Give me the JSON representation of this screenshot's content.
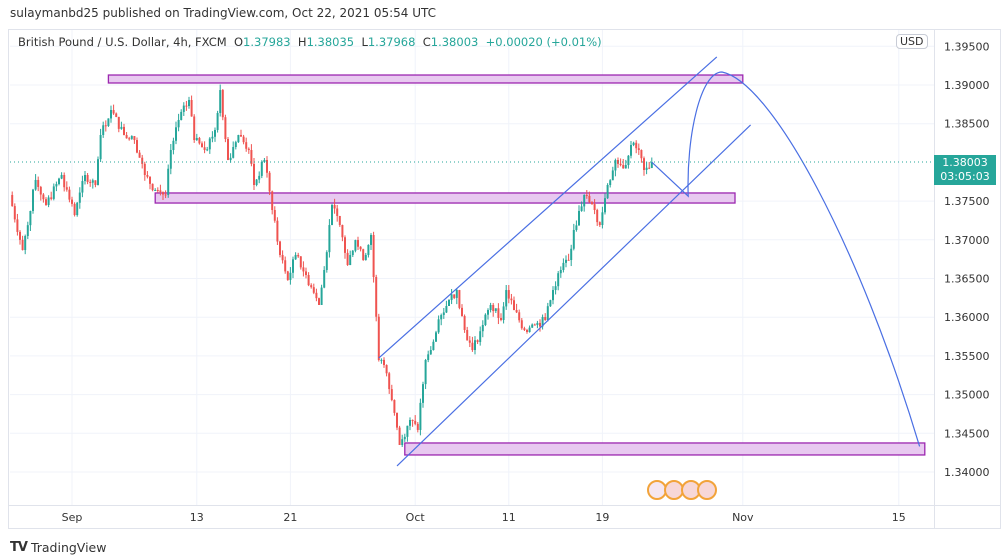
{
  "header": {
    "published": "sulaymanbd25 published on TradingView.com, Oct 22, 2021 05:54 UTC"
  },
  "legend": {
    "symbol": "British Pound / U.S. Dollar, 4h, FXCM",
    "open_label": "O",
    "open": "1.37983",
    "high_label": "H",
    "high": "1.38035",
    "low_label": "L",
    "low": "1.37968",
    "close_label": "C",
    "close": "1.38003",
    "change": "+0.00020 (+0.01%)"
  },
  "price_axis": {
    "currency_button": "USD",
    "current_price": "1.38003",
    "countdown": "03:05:03"
  },
  "footer": {
    "brand": "TradingView",
    "logo_mark": "17"
  },
  "colors": {
    "up": "#26a69a",
    "down": "#ef5350",
    "zone_fill": "#e8c9f0",
    "zone_border": "#9c27b0",
    "drawing": "#4a6fe3",
    "current_price": "#26a69a"
  },
  "chart_data": {
    "type": "candlestick",
    "title": "",
    "ylim": [
      1.3375,
      1.3955
    ],
    "grid": true,
    "y_ticks": [
      "1.39500",
      "1.39000",
      "1.38500",
      "1.37500",
      "1.37000",
      "1.36500",
      "1.36000",
      "1.35500",
      "1.35000",
      "1.34500",
      "1.34000"
    ],
    "x_ticks": [
      {
        "label": "Sep",
        "date": "2021-09-01"
      },
      {
        "label": "13",
        "date": "2021-09-13"
      },
      {
        "label": "21",
        "date": "2021-09-21"
      },
      {
        "label": "Oct",
        "date": "2021-10-01"
      },
      {
        "label": "11",
        "date": "2021-10-11"
      },
      {
        "label": "19",
        "date": "2021-10-19"
      },
      {
        "label": "Nov",
        "date": "2021-11-01"
      },
      {
        "label": "15",
        "date": "2021-11-15"
      }
    ],
    "price_path": [
      [
        "2021-08-26T00",
        1.37579
      ],
      [
        "2021-08-26T20",
        1.36868
      ],
      [
        "2021-08-27T16",
        1.37773
      ],
      [
        "2021-08-30T08",
        1.3745
      ],
      [
        "2021-08-31T08",
        1.37837
      ],
      [
        "2021-09-01T04",
        1.3732
      ],
      [
        "2021-09-01T20",
        1.37837
      ],
      [
        "2021-09-02T12",
        1.37708
      ],
      [
        "2021-09-02T20",
        1.38354
      ],
      [
        "2021-09-03T12",
        1.38677
      ],
      [
        "2021-09-06T08",
        1.38354
      ],
      [
        "2021-09-07T00",
        1.38289
      ],
      [
        "2021-09-07T16",
        1.37837
      ],
      [
        "2021-09-08T08",
        1.37643
      ],
      [
        "2021-09-09T00",
        1.37579
      ],
      [
        "2021-09-09T08",
        1.3816
      ],
      [
        "2021-09-09T20",
        1.38548
      ],
      [
        "2021-09-10T12",
        1.38806
      ],
      [
        "2021-09-10T20",
        1.38289
      ],
      [
        "2021-09-13T12",
        1.3816
      ],
      [
        "2021-09-14T04",
        1.38419
      ],
      [
        "2021-09-14T12",
        1.38935
      ],
      [
        "2021-09-15T00",
        1.38031
      ],
      [
        "2021-09-15T16",
        1.38354
      ],
      [
        "2021-09-16T08",
        1.3816
      ],
      [
        "2021-09-16T16",
        1.37708
      ],
      [
        "2021-09-17T08",
        1.38031
      ],
      [
        "2021-09-17T20",
        1.37385
      ],
      [
        "2021-09-20T08",
        1.36804
      ],
      [
        "2021-09-20T20",
        1.36481
      ],
      [
        "2021-09-21T08",
        1.36804
      ],
      [
        "2021-09-22T00",
        1.36545
      ],
      [
        "2021-09-22T20",
        1.36158
      ],
      [
        "2021-09-23T04",
        1.3661
      ],
      [
        "2021-09-23T16",
        1.3745
      ],
      [
        "2021-09-24T04",
        1.37191
      ],
      [
        "2021-09-24T16",
        1.36674
      ],
      [
        "2021-09-27T04",
        1.36997
      ],
      [
        "2021-09-27T16",
        1.36739
      ],
      [
        "2021-09-28T04",
        1.37062
      ],
      [
        "2021-09-28T16",
        1.35447
      ],
      [
        "2021-09-29T00",
        1.35382
      ],
      [
        "2021-09-29T12",
        1.3493
      ],
      [
        "2021-09-30T00",
        1.34349
      ],
      [
        "2021-09-30T16",
        1.34672
      ],
      [
        "2021-10-01T04",
        1.34543
      ],
      [
        "2021-10-01T16",
        1.35447
      ],
      [
        "2021-10-04T00",
        1.35576
      ],
      [
        "2021-10-04T16",
        1.36028
      ],
      [
        "2021-10-05T04",
        1.36222
      ],
      [
        "2021-10-05T16",
        1.36351
      ],
      [
        "2021-10-06T04",
        1.35835
      ],
      [
        "2021-10-06T16",
        1.35576
      ],
      [
        "2021-10-07T08",
        1.35899
      ],
      [
        "2021-10-07T20",
        1.36158
      ],
      [
        "2021-10-08T12",
        1.35964
      ],
      [
        "2021-10-08T20",
        1.36351
      ],
      [
        "2021-10-11T08",
        1.36093
      ],
      [
        "2021-10-12T00",
        1.35835
      ],
      [
        "2021-10-12T16",
        1.35899
      ],
      [
        "2021-10-13T08",
        1.35964
      ],
      [
        "2021-10-13T20",
        1.36351
      ],
      [
        "2021-10-14T08",
        1.3661
      ],
      [
        "2021-10-14T20",
        1.36739
      ],
      [
        "2021-10-15T04",
        1.37127
      ],
      [
        "2021-10-15T20",
        1.37579
      ],
      [
        "2021-10-18T12",
        1.37385
      ],
      [
        "2021-10-18T20",
        1.37191
      ],
      [
        "2021-10-19T08",
        1.37708
      ],
      [
        "2021-10-19T20",
        1.38031
      ],
      [
        "2021-10-20T04",
        1.37966
      ],
      [
        "2021-10-20T12",
        1.37966
      ],
      [
        "2021-10-20T20",
        1.38225
      ],
      [
        "2021-10-21T08",
        1.3816
      ],
      [
        "2021-10-21T16",
        1.37902
      ],
      [
        "2021-10-22T00",
        1.37928
      ],
      [
        "2021-10-22T04",
        1.38003
      ]
    ],
    "zones": [
      {
        "from": "2021-09-03T08",
        "to": "2021-11-01T00",
        "top": 1.39129,
        "bottom": 1.39026
      },
      {
        "from": "2021-09-08T08",
        "to": "2021-10-29T12",
        "top": 1.37605,
        "bottom": 1.37475
      },
      {
        "from": "2021-09-30T08",
        "to": "2021-11-16T16",
        "top": 1.34375,
        "bottom": 1.3422
      }
    ],
    "channel": {
      "upper": [
        [
          "2021-09-28T16",
          1.35473
        ],
        [
          "2021-10-28T08",
          1.39362
        ]
      ],
      "lower": [
        [
          "2021-09-29T20",
          1.34078
        ],
        [
          "2021-11-01T12",
          1.38484
        ]
      ]
    },
    "projection": [
      [
        "2021-10-22T04",
        1.38003
      ],
      [
        "2021-10-26T12",
        1.37563
      ],
      [
        "2021-10-27T16",
        1.38935
      ],
      [
        "2021-10-28T16",
        1.39168
      ],
      [
        "2021-11-16T08",
        1.3433
      ]
    ]
  }
}
